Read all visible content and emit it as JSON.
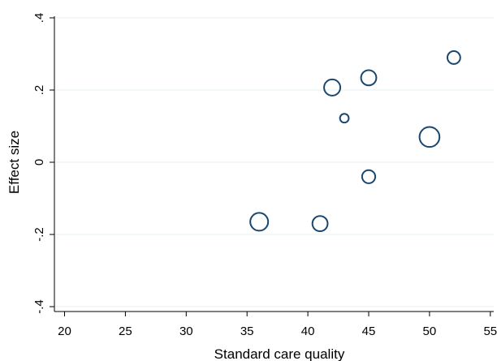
{
  "chart_data": {
    "type": "scatter",
    "title": "",
    "xlabel": "Standard care quality",
    "ylabel": "Effect size",
    "xlim": [
      19,
      55.5
    ],
    "ylim": [
      -0.4,
      0.4
    ],
    "x_ticks": [
      20,
      25,
      30,
      35,
      40,
      45,
      50,
      55
    ],
    "y_ticks": [
      -0.4,
      -0.2,
      0,
      0.2,
      0.4
    ],
    "y_tick_labels": [
      "-.4",
      "-.2",
      "0",
      ".2",
      ".4"
    ],
    "grid": true,
    "marker": "hollow circle, size proportional to weight",
    "point_color": "#1a476f",
    "points": [
      {
        "x": 36,
        "y": -0.165,
        "weight": 6.2
      },
      {
        "x": 41,
        "y": -0.17,
        "weight": 4.6
      },
      {
        "x": 42,
        "y": 0.207,
        "weight": 5.2
      },
      {
        "x": 43,
        "y": 0.122,
        "weight": 1.5
      },
      {
        "x": 45,
        "y": 0.234,
        "weight": 4.6
      },
      {
        "x": 45,
        "y": -0.04,
        "weight": 3.4
      },
      {
        "x": 50,
        "y": 0.07,
        "weight": 7.8
      },
      {
        "x": 52,
        "y": 0.29,
        "weight": 3.2
      }
    ]
  }
}
